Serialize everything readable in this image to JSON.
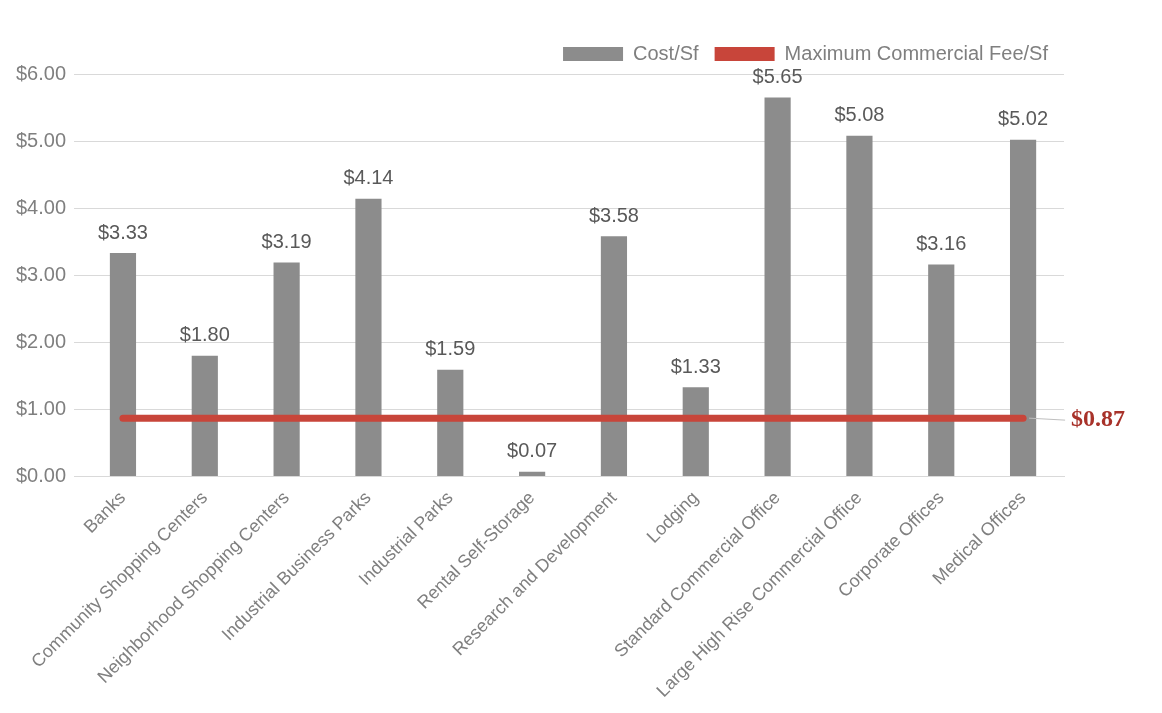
{
  "chart_data": {
    "type": "bar",
    "categories": [
      "Banks",
      "Community Shopping Centers",
      "Neighborhood Shopping Centers",
      "Industrial Business Parks",
      "Industrial Parks",
      "Rental Self-Storage",
      "Research and Development",
      "Lodging",
      "Standard Commercial Office",
      "Large High Rise Commercial Office",
      "Corporate Offices",
      "Medical Offices"
    ],
    "series": [
      {
        "name": "Cost/Sf",
        "color": "#8c8c8c",
        "values": [
          3.33,
          1.8,
          3.19,
          4.14,
          1.59,
          0.07,
          3.58,
          1.33,
          5.65,
          5.08,
          3.16,
          5.02
        ],
        "value_labels": [
          "$3.33",
          "$1.80",
          "$3.19",
          "$4.14",
          "$1.59",
          "$0.07",
          "$3.58",
          "$1.33",
          "$5.65",
          "$5.08",
          "$3.16",
          "$5.02"
        ]
      },
      {
        "name": "Maximum Commercial Fee/Sf",
        "type": "line",
        "color": "#c8453a",
        "values": [
          0.87,
          0.87,
          0.87,
          0.87,
          0.87,
          0.87,
          0.87,
          0.87,
          0.87,
          0.87,
          0.87,
          0.87
        ],
        "value_labels": [
          null,
          null,
          null,
          null,
          null,
          null,
          null,
          null,
          null,
          null,
          null,
          "$0.87"
        ]
      }
    ],
    "ylim": [
      0,
      6
    ],
    "yticks": [
      {
        "value": 0,
        "label": "$0.00"
      },
      {
        "value": 1,
        "label": "$1.00"
      },
      {
        "value": 2,
        "label": "$2.00"
      },
      {
        "value": 3,
        "label": "$3.00"
      },
      {
        "value": 4,
        "label": "$4.00"
      },
      {
        "value": 5,
        "label": "$5.00"
      },
      {
        "value": 6,
        "label": "$6.00"
      }
    ],
    "grid": "y",
    "legend": "top right"
  }
}
